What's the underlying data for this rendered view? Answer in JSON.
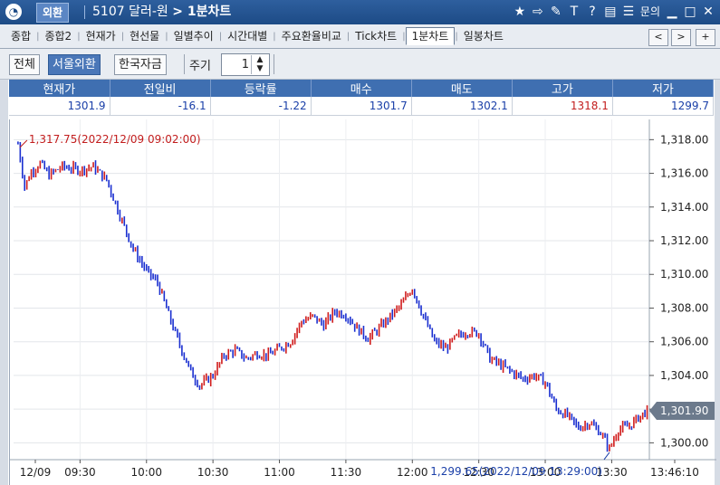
{
  "titlebar": {
    "app": "외환",
    "title_prefix": "5107 달러-원 ",
    "title_main": "> 1분차트",
    "icons": [
      "star-icon",
      "export-icon",
      "tool-icon",
      "text-icon",
      "help-icon",
      "print-icon",
      "list-icon"
    ],
    "inquiry": "문의",
    "star": "★",
    "export": "⇨",
    "tool": "✎",
    "text": "T",
    "help": "?",
    "print": "▤",
    "list": "☰",
    "minimize": "▁",
    "maximize": "□",
    "close": "✕"
  },
  "tabs": [
    "종합",
    "종합2",
    "현재가",
    "현선물",
    "일별추이",
    "시간대별",
    "주요환율비교",
    "Tick차트",
    "1분차트",
    "일봉차트"
  ],
  "active_tab": "1분차트",
  "nav": {
    "prev": "<",
    "next": ">",
    "add": "+"
  },
  "toolbar": {
    "buttons": [
      "전체",
      "서울외환",
      "한국자금"
    ],
    "selected": "서울외환",
    "period_label": "주기",
    "period_value": "1"
  },
  "quote": {
    "headers": [
      "현재가",
      "전일비",
      "등락률",
      "매수",
      "매도",
      "고가",
      "저가"
    ],
    "values": [
      "1301.9",
      "-16.1",
      "-1.22",
      "1301.7",
      "1302.1",
      "1318.1",
      "1299.7"
    ]
  },
  "chart_data": {
    "type": "candlestick",
    "y_ticks": [
      "1,300.00",
      "1,302.00",
      "1,304.00",
      "1,306.00",
      "1,308.00",
      "1,310.00",
      "1,312.00",
      "1,314.00",
      "1,316.00",
      "1,318.00"
    ],
    "ylim": [
      1299,
      1319.2
    ],
    "x_ticks": [
      "12/09",
      "09:30",
      "10:00",
      "10:30",
      "11:00",
      "11:30",
      "12:00",
      "12:30",
      "13:00",
      "13:30",
      "13:46:10"
    ],
    "current_label": "1,301.90",
    "current_value": 1301.9,
    "annotations": [
      {
        "text": "1,317.75(2022/12/09 09:02:00)",
        "value": 1317.75,
        "color": "#c21d1d"
      },
      {
        "text": "1,299.65(2022/12/09 13:29:00)",
        "value": 1299.65,
        "color": "#1a3fa8"
      }
    ],
    "series": [
      {
        "time": "09:02",
        "price": 1317.75
      },
      {
        "time": "09:05",
        "price": 1315.2
      },
      {
        "time": "09:08",
        "price": 1316.1
      },
      {
        "time": "09:12",
        "price": 1316.6
      },
      {
        "time": "09:16",
        "price": 1315.9
      },
      {
        "time": "09:22",
        "price": 1316.4
      },
      {
        "time": "09:30",
        "price": 1316.2
      },
      {
        "time": "09:36",
        "price": 1316.4
      },
      {
        "time": "09:42",
        "price": 1315.6
      },
      {
        "time": "09:48",
        "price": 1313.5
      },
      {
        "time": "09:54",
        "price": 1311.5
      },
      {
        "time": "10:00",
        "price": 1310.2
      },
      {
        "time": "10:05",
        "price": 1309.5
      },
      {
        "time": "10:10",
        "price": 1307.6
      },
      {
        "time": "10:15",
        "price": 1305.8
      },
      {
        "time": "10:20",
        "price": 1304.2
      },
      {
        "time": "10:24",
        "price": 1303.4
      },
      {
        "time": "10:30",
        "price": 1304.0
      },
      {
        "time": "10:35",
        "price": 1305.2
      },
      {
        "time": "10:40",
        "price": 1305.5
      },
      {
        "time": "10:45",
        "price": 1305.0
      },
      {
        "time": "10:50",
        "price": 1305.3
      },
      {
        "time": "10:55",
        "price": 1305.2
      },
      {
        "time": "11:00",
        "price": 1305.6
      },
      {
        "time": "11:05",
        "price": 1306.0
      },
      {
        "time": "11:10",
        "price": 1307.2
      },
      {
        "time": "11:15",
        "price": 1307.5
      },
      {
        "time": "11:20",
        "price": 1307.0
      },
      {
        "time": "11:25",
        "price": 1307.8
      },
      {
        "time": "11:30",
        "price": 1307.6
      },
      {
        "time": "11:35",
        "price": 1306.8
      },
      {
        "time": "11:40",
        "price": 1306.2
      },
      {
        "time": "11:45",
        "price": 1306.8
      },
      {
        "time": "11:50",
        "price": 1307.5
      },
      {
        "time": "11:55",
        "price": 1308.2
      },
      {
        "time": "12:00",
        "price": 1309.2
      },
      {
        "time": "12:05",
        "price": 1307.5
      },
      {
        "time": "12:10",
        "price": 1306.0
      },
      {
        "time": "12:15",
        "price": 1305.6
      },
      {
        "time": "12:20",
        "price": 1306.3
      },
      {
        "time": "12:25",
        "price": 1306.6
      },
      {
        "time": "12:30",
        "price": 1306.5
      },
      {
        "time": "12:35",
        "price": 1305.0
      },
      {
        "time": "12:40",
        "price": 1304.6
      },
      {
        "time": "12:45",
        "price": 1304.2
      },
      {
        "time": "12:50",
        "price": 1303.8
      },
      {
        "time": "12:55",
        "price": 1304.0
      },
      {
        "time": "13:00",
        "price": 1303.6
      },
      {
        "time": "13:05",
        "price": 1302.0
      },
      {
        "time": "13:10",
        "price": 1301.6
      },
      {
        "time": "13:15",
        "price": 1300.9
      },
      {
        "time": "13:20",
        "price": 1301.2
      },
      {
        "time": "13:25",
        "price": 1300.6
      },
      {
        "time": "13:29",
        "price": 1299.65
      },
      {
        "time": "13:33",
        "price": 1300.8
      },
      {
        "time": "13:38",
        "price": 1301.0
      },
      {
        "time": "13:42",
        "price": 1301.5
      },
      {
        "time": "13:46",
        "price": 1301.9
      }
    ],
    "up_color": "#d01c1c",
    "down_color": "#1a2fd0",
    "grid": true
  }
}
